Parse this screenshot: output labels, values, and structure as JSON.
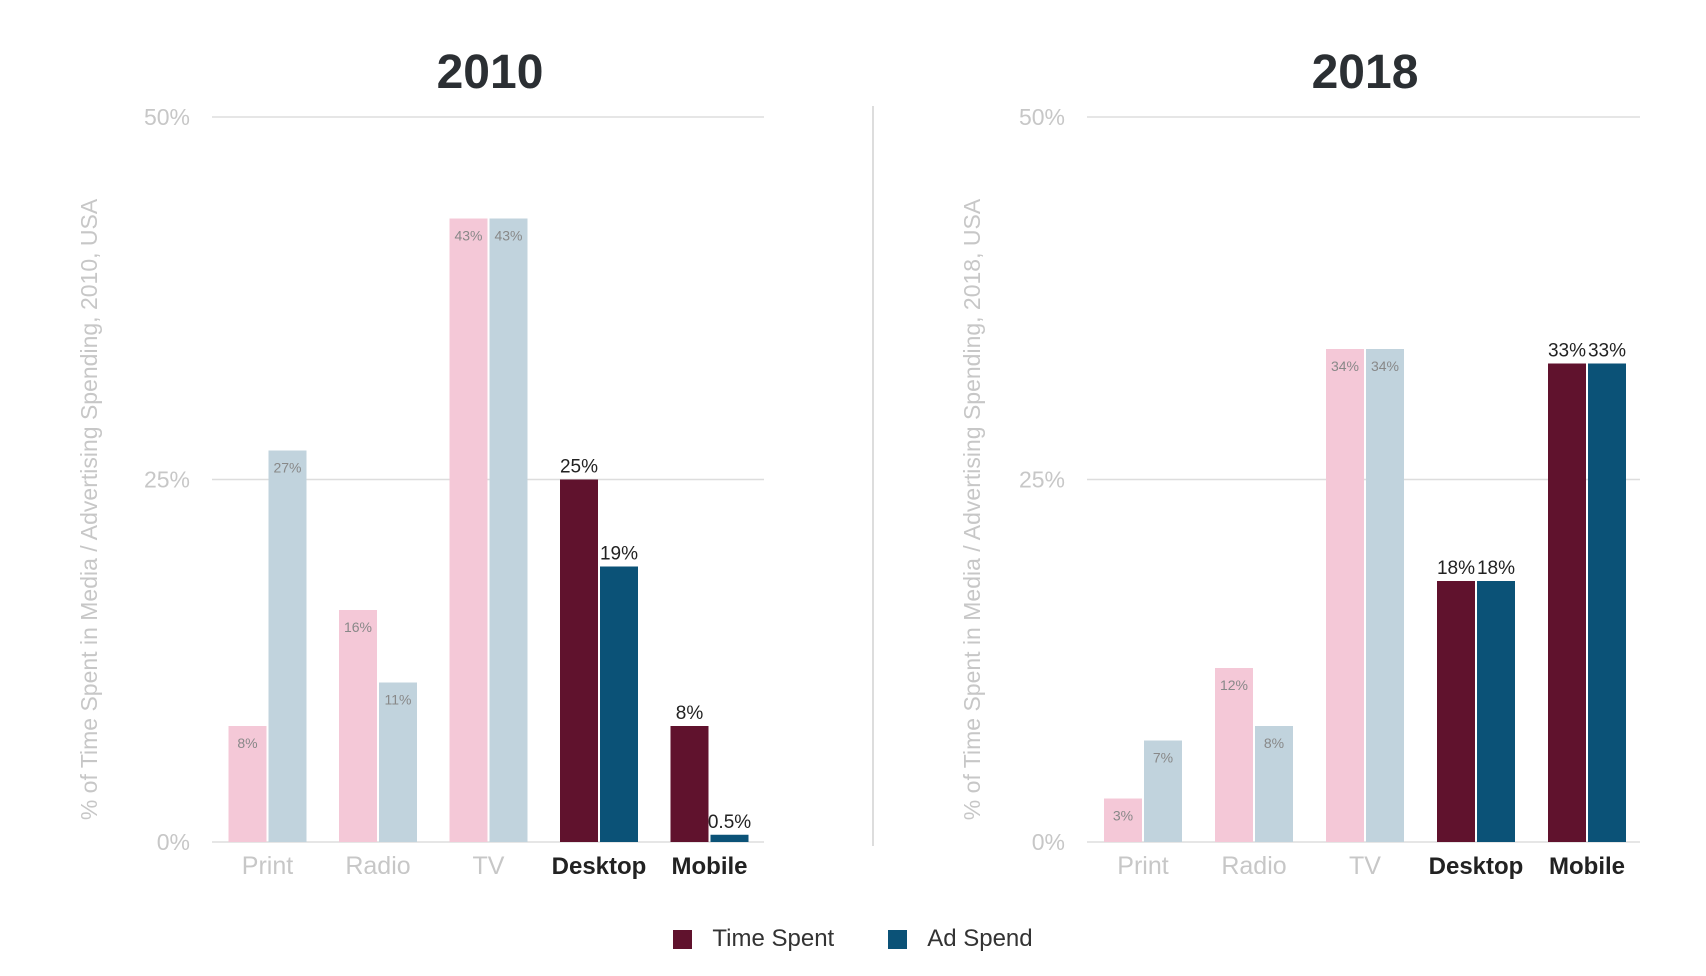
{
  "legend": {
    "time_label": "Time Spent",
    "ad_label": "Ad Spend"
  },
  "colors": {
    "time_highlight": "#60122d",
    "ad_highlight": "#0b5277",
    "time_muted": "#f4c8d7",
    "ad_muted": "#c1d3dd",
    "axis_text": "#c7c7c7",
    "grid": "#dddddd",
    "title": "#2b2f33",
    "label_dark": "#222222",
    "label_muted": "#888888",
    "category_dark": "#222222"
  },
  "chart_data": [
    {
      "type": "bar",
      "title": "2010",
      "ylabel": "% of Time Spent in Media / Advertising Spending, 2010, USA",
      "ylim": [
        0,
        50
      ],
      "yticks": [
        "0%",
        "25%",
        "50%"
      ],
      "categories": [
        "Print",
        "Radio",
        "TV",
        "Desktop",
        "Mobile"
      ],
      "highlighted_categories": [
        "Desktop",
        "Mobile"
      ],
      "series": [
        {
          "name": "Time Spent",
          "values": [
            8,
            16,
            43,
            25,
            8
          ],
          "labels": [
            "8%",
            "16%",
            "43%",
            "25%",
            "8%"
          ]
        },
        {
          "name": "Ad Spend",
          "values": [
            27,
            11,
            43,
            19,
            0.5
          ],
          "labels": [
            "27%",
            "11%",
            "43%",
            "19%",
            "0.5%"
          ]
        }
      ]
    },
    {
      "type": "bar",
      "title": "2018",
      "ylabel": "% of Time Spent in Media / Advertising Spending, 2018, USA",
      "ylim": [
        0,
        50
      ],
      "yticks": [
        "0%",
        "25%",
        "50%"
      ],
      "categories": [
        "Print",
        "Radio",
        "TV",
        "Desktop",
        "Mobile"
      ],
      "highlighted_categories": [
        "Desktop",
        "Mobile"
      ],
      "series": [
        {
          "name": "Time Spent",
          "values": [
            3,
            12,
            34,
            18,
            33
          ],
          "labels": [
            "3%",
            "12%",
            "34%",
            "18%",
            "33%"
          ]
        },
        {
          "name": "Ad Spend",
          "values": [
            7,
            8,
            34,
            18,
            33
          ],
          "labels": [
            "7%",
            "8%",
            "34%",
            "18%",
            "33%"
          ]
        }
      ]
    }
  ]
}
